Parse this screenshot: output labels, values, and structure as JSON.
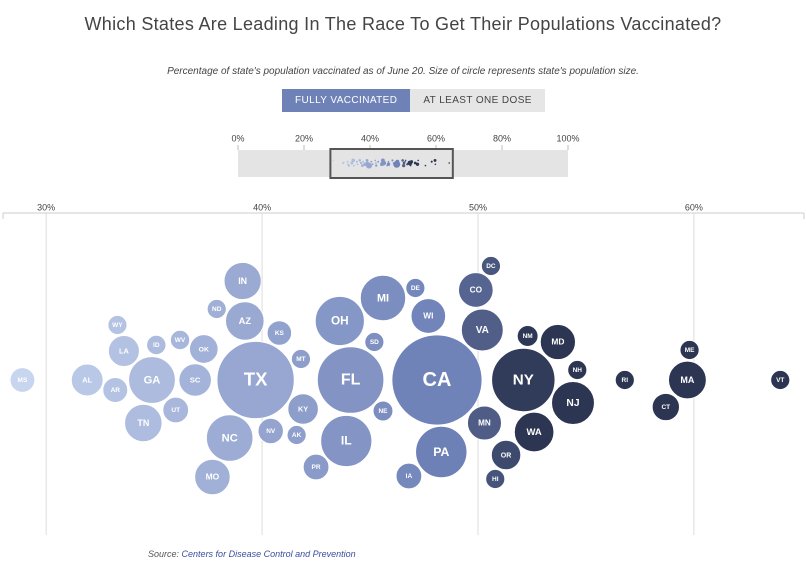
{
  "title": "Which States Are Leading In The Race To Get Their Populations Vaccinated?",
  "subtitle": "Percentage of state's population vaccinated as of June 20. Size of circle represents state's population size.",
  "toggle": {
    "options": [
      "FULLY VACCINATED",
      "AT LEAST ONE DOSE"
    ],
    "active": 0
  },
  "source": {
    "label": "Source:",
    "link": "Centers for Disease Control and Prevention"
  },
  "chart_data": {
    "type": "beeswarm",
    "categories": [
      "MS",
      "AL",
      "LA",
      "AR",
      "WY",
      "GA",
      "TN",
      "ID",
      "UT",
      "WV",
      "SC",
      "OK",
      "MO",
      "ND",
      "NC",
      "IN",
      "AZ",
      "TX",
      "NV",
      "KS",
      "AK",
      "MT",
      "KY",
      "PR",
      "OH",
      "IL",
      "FL",
      "SD",
      "NE",
      "MI",
      "IA",
      "DE",
      "WI",
      "PA",
      "CA",
      "CO",
      "MN",
      "VA",
      "DC",
      "OR",
      "HI",
      "NY",
      "NM",
      "WA",
      "NJ",
      "NH",
      "MD",
      "RI",
      "CT",
      "ME",
      "MA",
      "VT"
    ],
    "values": [
      28.9,
      31.9,
      33.6,
      33.2,
      33.3,
      34.9,
      34.5,
      35.1,
      36.0,
      36.2,
      36.9,
      37.3,
      37.7,
      37.9,
      38.5,
      39.1,
      39.2,
      39.7,
      40.4,
      40.8,
      41.6,
      41.8,
      41.9,
      42.5,
      43.6,
      43.9,
      44.1,
      45.2,
      45.6,
      45.6,
      46.8,
      47.1,
      47.7,
      48.3,
      48.1,
      49.9,
      50.3,
      50.2,
      50.6,
      51.3,
      50.8,
      52.1,
      52.3,
      52.6,
      54.4,
      54.6,
      53.7,
      56.8,
      58.7,
      59.8,
      59.7,
      64.0
    ],
    "sizes": [
      2.96,
      4.9,
      4.65,
      3.0,
      0.58,
      10.6,
      6.8,
      1.8,
      3.2,
      1.8,
      5.1,
      3.96,
      6.1,
      0.76,
      10.5,
      6.7,
      7.2,
      29.0,
      3.1,
      2.9,
      0.73,
      1.07,
      4.5,
      3.2,
      11.7,
      12.7,
      21.5,
      0.88,
      1.9,
      10.0,
      3.2,
      0.97,
      5.8,
      12.8,
      39.5,
      5.8,
      5.6,
      8.5,
      0.7,
      4.2,
      1.4,
      19.5,
      2.1,
      7.6,
      8.9,
      1.4,
      6.0,
      1.06,
      3.6,
      1.35,
      6.9,
      0.64
    ],
    "colors": [
      "#c8d5ef",
      "#7083b9",
      "#2c3552"
    ],
    "xlim": [
      28,
      65.1
    ],
    "xticks": [
      {
        "value": 30,
        "label": "30%"
      },
      {
        "value": 40,
        "label": "40%"
      },
      {
        "value": 50,
        "label": "50%"
      },
      {
        "value": 60,
        "label": "60%"
      }
    ],
    "grid": true,
    "overview": {
      "xlim": [
        0,
        100
      ],
      "xticks": [
        {
          "value": 0,
          "label": "0%"
        },
        {
          "value": 20,
          "label": "20%"
        },
        {
          "value": 40,
          "label": "40%"
        },
        {
          "value": 60,
          "label": "60%"
        },
        {
          "value": 80,
          "label": "80%"
        },
        {
          "value": 100,
          "label": "100%"
        }
      ]
    }
  }
}
